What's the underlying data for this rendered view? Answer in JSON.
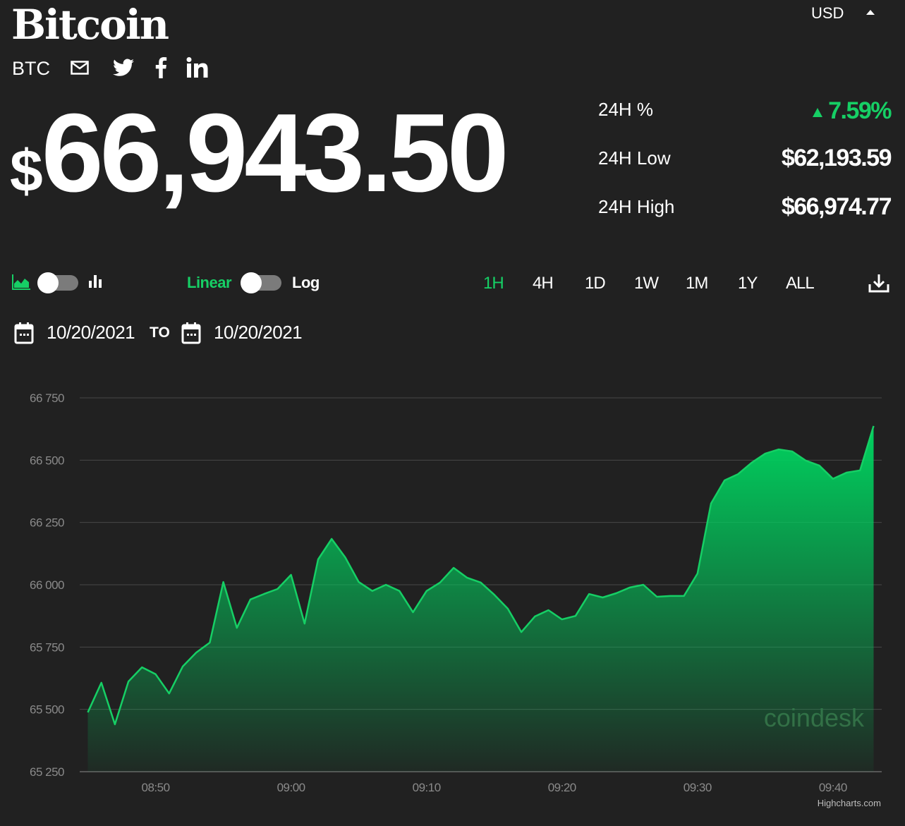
{
  "header": {
    "title": "Bitcoin",
    "symbol": "BTC",
    "currency": "USD",
    "share_icons": [
      "mail-icon",
      "twitter-icon",
      "facebook-icon",
      "linkedin-icon"
    ]
  },
  "price": {
    "currency_symbol": "$",
    "value": "66,943.50"
  },
  "stats": [
    {
      "label": "24H %",
      "value": "7.59%",
      "direction": "up"
    },
    {
      "label": "24H Low",
      "value": "$62,193.59"
    },
    {
      "label": "24H High",
      "value": "$66,974.77"
    }
  ],
  "controls": {
    "scale_linear": "Linear",
    "scale_log": "Log",
    "ranges": [
      "1H",
      "4H",
      "1D",
      "1W",
      "1M",
      "1Y",
      "ALL"
    ],
    "active_range": "1H",
    "date_from": "10/20/2021",
    "to_label": "TO",
    "date_to": "10/20/2021"
  },
  "colors": {
    "accent": "#16cf65",
    "background": "#212121",
    "grid": "#474747",
    "axis_text": "#8a8a8a"
  },
  "chart_data": {
    "type": "area",
    "title": "",
    "xlabel": "",
    "ylabel": "",
    "x_start": "08:45",
    "x_step_minutes": 1,
    "x_ticks": [
      "08:50",
      "09:00",
      "09:10",
      "09:20",
      "09:30",
      "09:40"
    ],
    "x_tick_minutes": [
      5,
      15,
      25,
      35,
      45,
      55
    ],
    "x_range_minutes": [
      -0.6,
      58.6
    ],
    "ylim": [
      65250,
      66750
    ],
    "y_ticks": [
      65250,
      65500,
      65750,
      66000,
      66250,
      66500,
      66750
    ],
    "y_tick_labels": [
      "65 250",
      "65 500",
      "65 750",
      "66 000",
      "66 250",
      "66 500",
      "66 750"
    ],
    "grid": true,
    "series": [
      {
        "name": "BTC/USD",
        "values": [
          65488,
          65607,
          65440,
          65612,
          65669,
          65641,
          65564,
          65672,
          65728,
          65768,
          66011,
          65827,
          65941,
          65963,
          65983,
          66040,
          65844,
          66102,
          66184,
          66110,
          66011,
          65975,
          66000,
          65975,
          65890,
          65975,
          66009,
          66068,
          66028,
          66009,
          65960,
          65904,
          65810,
          65873,
          65898,
          65861,
          65875,
          65963,
          65949,
          65966,
          65989,
          66000,
          65952,
          65955,
          65955,
          66045,
          66326,
          66419,
          66444,
          66490,
          66526,
          66543,
          66535,
          66498,
          66478,
          66425,
          66450,
          66459,
          66637
        ]
      }
    ],
    "watermark": "coindesk",
    "credits": "Highcharts.com"
  }
}
